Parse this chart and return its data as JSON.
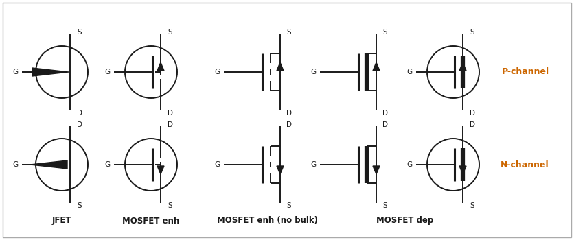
{
  "background_color": "#ffffff",
  "border_color": "#aaaaaa",
  "line_color": "#1a1a1a",
  "text_color": "#1a1a1a",
  "orange_color": "#cc6600",
  "figsize": [
    8.36,
    3.5
  ],
  "dpi": 100,
  "col_labels": [
    "JFET",
    "MOSFET enh",
    "MOSFET enh (no bulk)",
    "MOSFET dep"
  ],
  "label_color": "#1a1a1a",
  "row_label_color": "#cc6600"
}
